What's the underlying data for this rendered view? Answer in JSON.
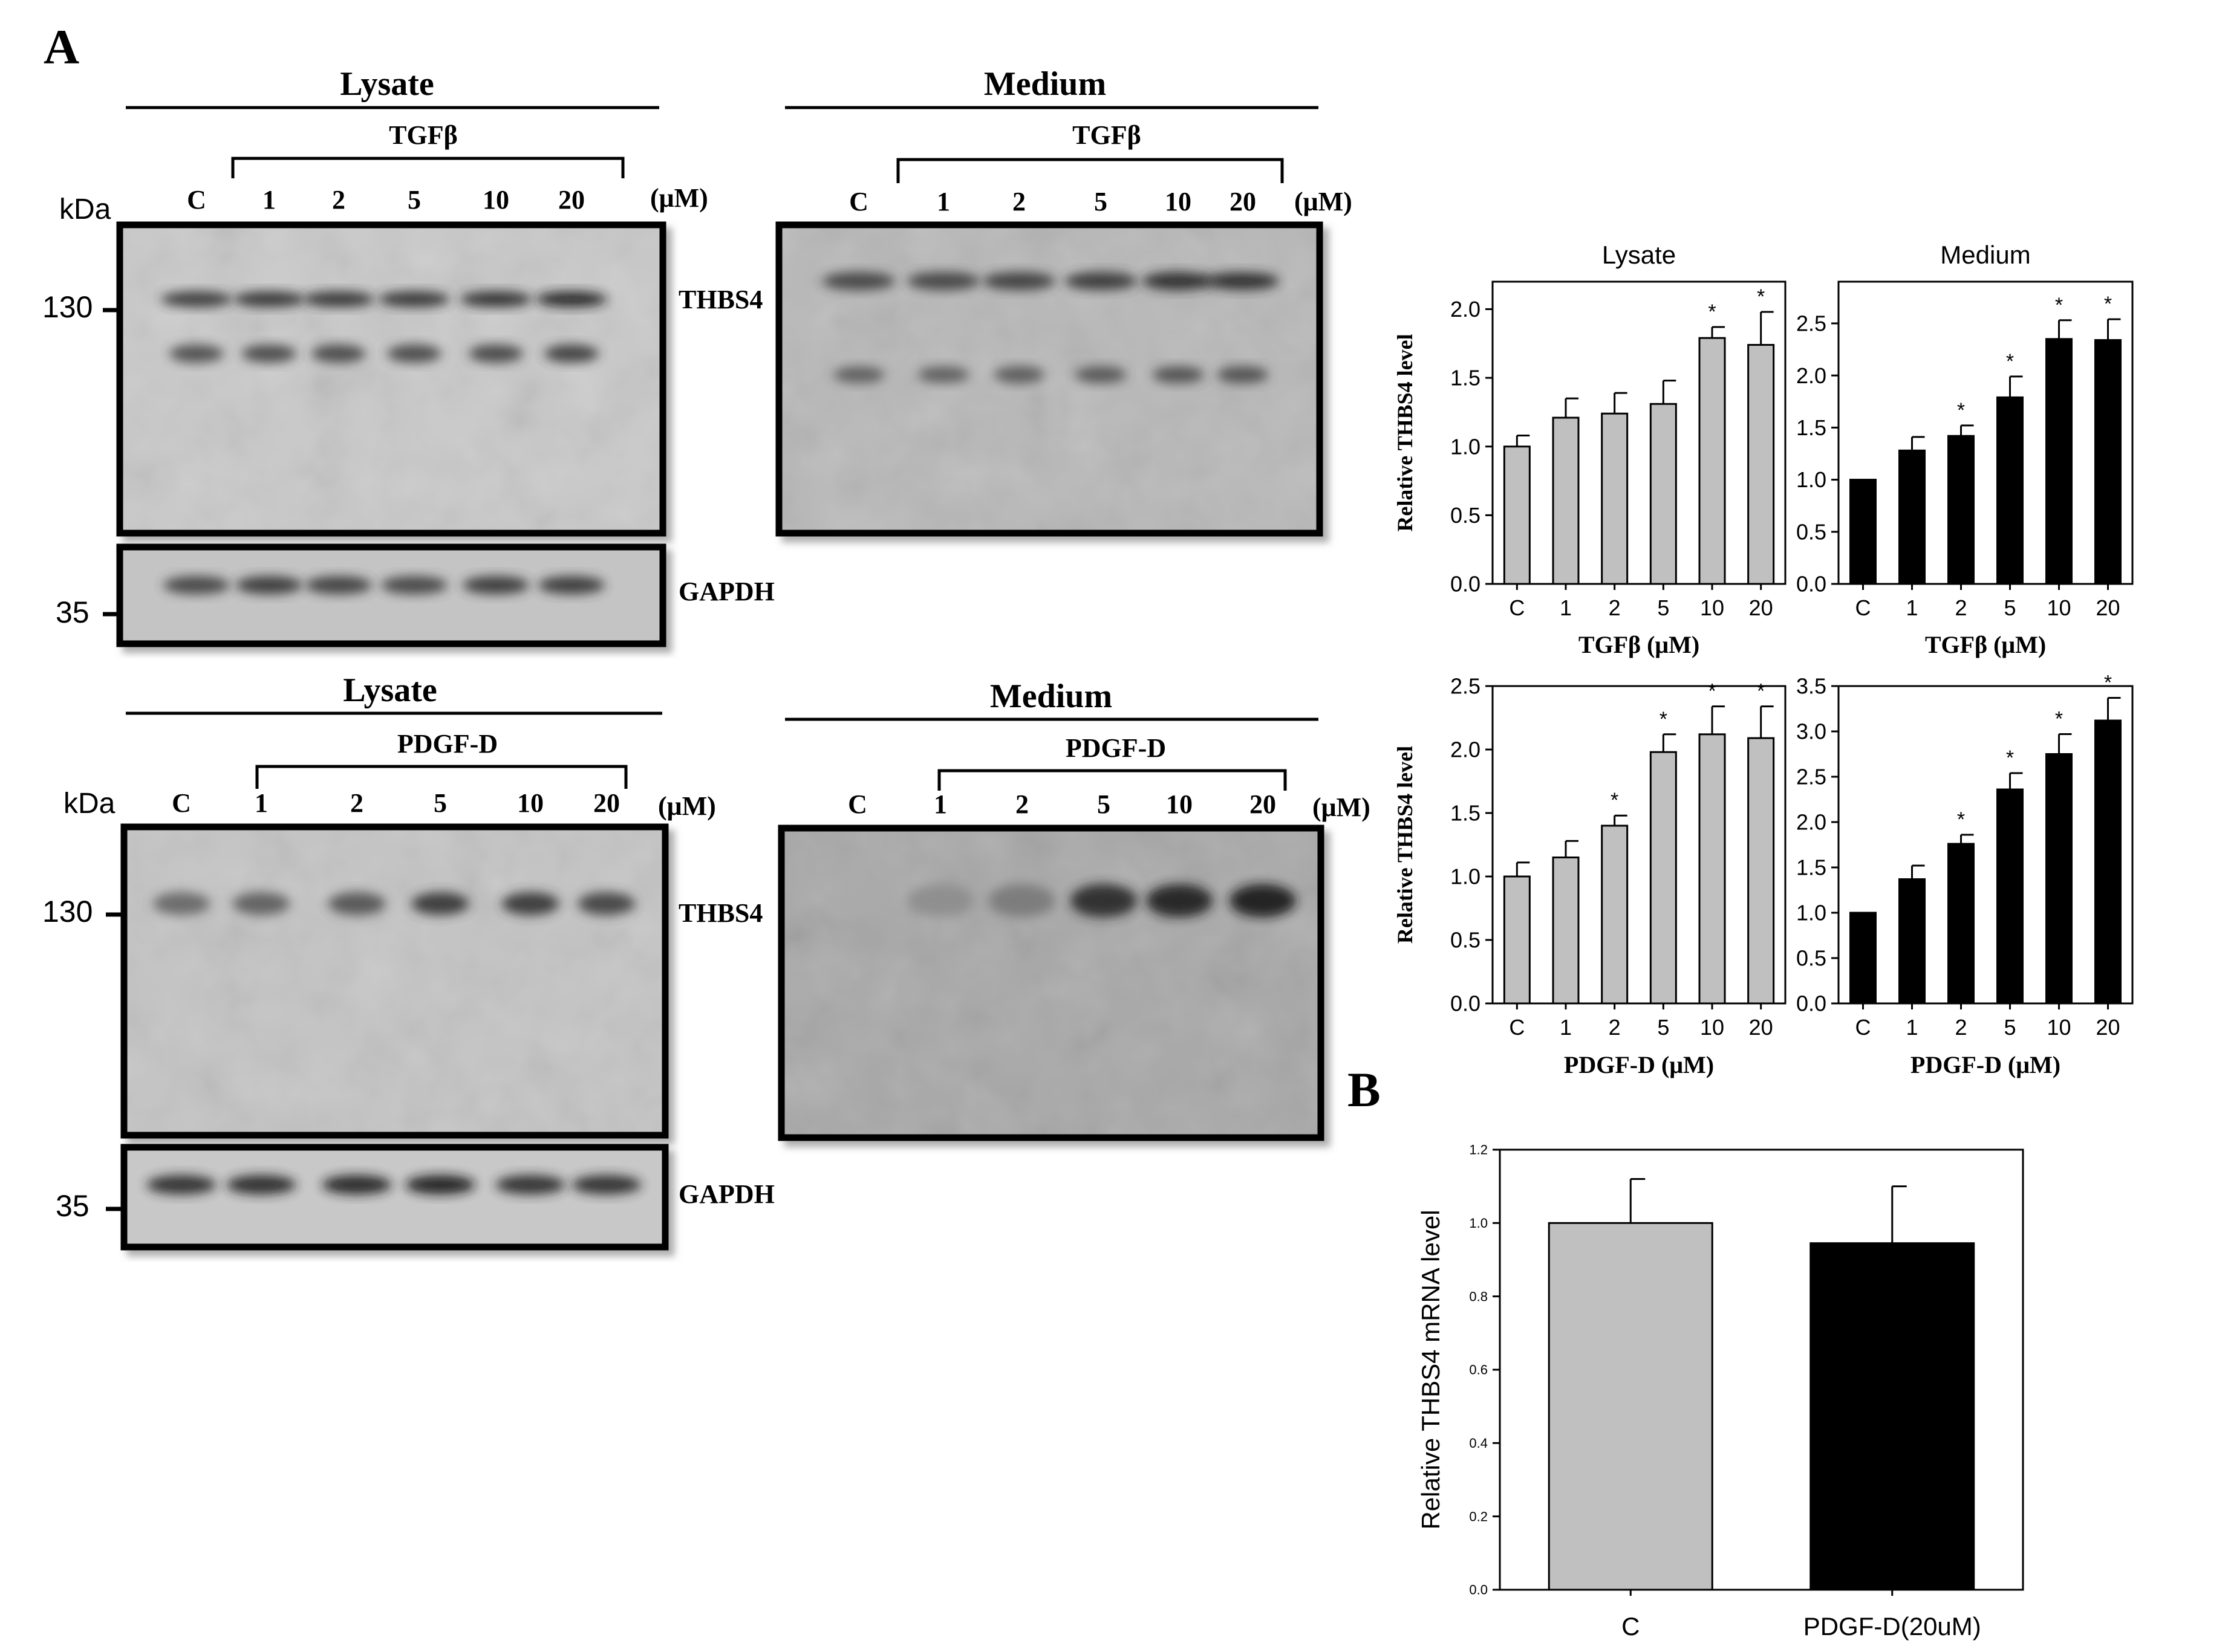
{
  "panel_labels": {
    "a": "A",
    "b": "B"
  },
  "blots": {
    "kda_label": "kDa",
    "unit_label": "(μM)",
    "markers": {
      "high": "130",
      "low": "35"
    },
    "protein_labels": {
      "target": "THBS4",
      "loading": "GAPDH"
    },
    "lane_labels": [
      "C",
      "1",
      "2",
      "5",
      "10",
      "20"
    ],
    "tgf_row": {
      "lysate_title": "Lysate",
      "medium_title": "Medium",
      "treatment": "TGFβ"
    },
    "pdgf_row": {
      "lysate_title": "Lysate",
      "medium_title": "Medium",
      "treatment": "PDGF-D"
    },
    "band_intensity": {
      "tgf_lysate_thbs4": [
        0.75,
        0.78,
        0.78,
        0.78,
        0.8,
        0.85
      ],
      "tgf_medium_thbs4": [
        0.7,
        0.7,
        0.72,
        0.75,
        0.8,
        0.8
      ],
      "pdgf_lysate_thbs4": [
        0.5,
        0.55,
        0.6,
        0.75,
        0.75,
        0.7
      ],
      "pdgf_medium_thbs4": [
        0.15,
        0.3,
        0.4,
        0.8,
        0.85,
        0.9
      ],
      "tgf_lysate_gapdh": [
        0.7,
        0.75,
        0.72,
        0.7,
        0.75,
        0.75
      ],
      "pdgf_lysate_gapdh": [
        0.8,
        0.82,
        0.85,
        0.88,
        0.8,
        0.8
      ]
    }
  },
  "colors": {
    "grey_bar": "#c0c0c0",
    "black_bar": "#000000",
    "blot_bg": "#b8b8b8"
  },
  "chart_data": [
    {
      "type": "bar",
      "title": "Lysate",
      "categories": [
        "C",
        "1",
        "2",
        "5",
        "10",
        "20"
      ],
      "values": [
        1.0,
        1.21,
        1.24,
        1.31,
        1.79,
        1.74
      ],
      "errors": [
        0.08,
        0.14,
        0.15,
        0.17,
        0.08,
        0.24
      ],
      "significant": [
        false,
        false,
        false,
        false,
        true,
        true
      ],
      "significance_marker": "*",
      "xlabel": "TGFβ (μM)",
      "ylabel": "Relative THBS4 level",
      "ylim": [
        0,
        2.2
      ],
      "yticks": [
        "0.0",
        "0.5",
        "1.0",
        "1.5",
        "2.0"
      ],
      "bar_color": "#c0c0c0"
    },
    {
      "type": "bar",
      "title": "Medium",
      "categories": [
        "C",
        "1",
        "2",
        "5",
        "10",
        "20"
      ],
      "values": [
        1.0,
        1.28,
        1.42,
        1.79,
        2.35,
        2.34
      ],
      "errors": [
        0.0,
        0.13,
        0.1,
        0.2,
        0.18,
        0.2
      ],
      "significant": [
        false,
        false,
        true,
        true,
        true,
        true
      ],
      "significance_marker": "*",
      "xlabel": "TGFβ (μM)",
      "ylabel": "",
      "ylim": [
        0,
        2.9
      ],
      "yticks": [
        "0.0",
        "0.5",
        "1.0",
        "1.5",
        "2.0",
        "2.5"
      ],
      "bar_color": "#000000"
    },
    {
      "type": "bar",
      "title": "",
      "categories": [
        "C",
        "1",
        "2",
        "5",
        "10",
        "20"
      ],
      "values": [
        1.0,
        1.15,
        1.4,
        1.98,
        2.12,
        2.09
      ],
      "errors": [
        0.11,
        0.13,
        0.08,
        0.14,
        0.22,
        0.25
      ],
      "significant": [
        false,
        false,
        true,
        true,
        true,
        true
      ],
      "significance_marker": "*",
      "xlabel": "PDGF-D (μM)",
      "ylabel": "Relative THBS4 level",
      "ylim": [
        0,
        2.5
      ],
      "yticks": [
        "0.0",
        "0.5",
        "1.0",
        "1.5",
        "2.0",
        "2.5"
      ],
      "bar_color": "#c0c0c0"
    },
    {
      "type": "bar",
      "title": "",
      "categories": [
        "C",
        "1",
        "2",
        "5",
        "10",
        "20"
      ],
      "values": [
        1.0,
        1.37,
        1.76,
        2.36,
        2.75,
        3.12
      ],
      "errors": [
        0.0,
        0.15,
        0.1,
        0.18,
        0.22,
        0.25
      ],
      "significant": [
        false,
        false,
        true,
        true,
        true,
        true
      ],
      "significance_marker": "*",
      "xlabel": "PDGF-D (μM)",
      "ylabel": "",
      "ylim": [
        0,
        3.5
      ],
      "yticks": [
        "0.0",
        "0.5",
        "1.0",
        "1.5",
        "2.0",
        "2.5",
        "3.0",
        "3.5"
      ],
      "bar_color": "#000000"
    },
    {
      "type": "bar",
      "title": "",
      "categories": [
        "C",
        "PDGF-D(20uM)"
      ],
      "values": [
        1.0,
        0.945
      ],
      "errors": [
        0.12,
        0.155
      ],
      "colors": [
        "#c0c0c0",
        "#000000"
      ],
      "xlabel": "",
      "ylabel": "Relative THBS4 mRNA level",
      "ylim": [
        0,
        1.2
      ],
      "yticks": [
        "0.0",
        "0.2",
        "0.4",
        "0.6",
        "0.8",
        "1.0",
        "1.2"
      ]
    }
  ]
}
